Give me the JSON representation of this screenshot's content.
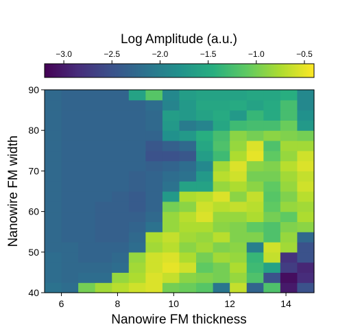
{
  "chart_data": {
    "type": "heatmap",
    "title": "",
    "xlabel": "Nanowire FM thickness",
    "ylabel": "Nanowire FM width",
    "xlim": [
      5.4,
      15.0
    ],
    "ylim": [
      40,
      90
    ],
    "x_ticks": [
      "6",
      "8",
      "10",
      "12",
      "14"
    ],
    "y_ticks": [
      "40",
      "50",
      "60",
      "70",
      "80",
      "90"
    ],
    "colorbar": {
      "label": "Log Amplitude (a.u.)",
      "range": [
        -3.2,
        -0.4
      ],
      "ticks": [
        "−3.0",
        "−2.5",
        "−2.0",
        "−1.5",
        "−1.0",
        "−0.5"
      ],
      "colormap": "viridis",
      "position": "top"
    },
    "x_centers": [
      5.7,
      6.3,
      6.9,
      7.5,
      8.1,
      8.7,
      9.3,
      9.9,
      10.5,
      11.1,
      11.7,
      12.3,
      12.9,
      13.5,
      14.1,
      14.7
    ],
    "y_centers": [
      41.25,
      43.75,
      46.25,
      48.75,
      51.25,
      53.75,
      56.25,
      58.75,
      61.25,
      63.75,
      66.25,
      68.75,
      71.25,
      73.75,
      76.25,
      78.75,
      81.25,
      83.75,
      86.25,
      88.75
    ],
    "values": [
      [
        -2.15,
        -2.2,
        -1.0,
        -0.8,
        -0.7,
        -0.6,
        -0.55,
        -1.0,
        -1.05,
        -1.15,
        -2.1,
        -0.65,
        -2.3,
        -1.2,
        -3.0,
        -2.5
      ],
      [
        -2.2,
        -2.25,
        -2.2,
        -2.2,
        -0.85,
        -0.75,
        -0.55,
        -0.65,
        -0.9,
        -0.95,
        -1.0,
        -0.85,
        -1.2,
        -2.5,
        -3.1,
        -2.85
      ],
      [
        -2.2,
        -2.25,
        -2.25,
        -2.25,
        -2.2,
        -0.8,
        -0.6,
        -0.5,
        -0.6,
        -1.1,
        -1.0,
        -0.75,
        -1.3,
        -1.6,
        -2.7,
        -2.9
      ],
      [
        -2.2,
        -2.25,
        -2.3,
        -2.3,
        -2.25,
        -0.85,
        -0.6,
        -0.55,
        -0.75,
        -1.0,
        -0.8,
        -0.85,
        -1.35,
        -0.65,
        -2.8,
        -2.5
      ],
      [
        -2.25,
        -2.25,
        -2.3,
        -2.3,
        -2.3,
        -2.2,
        -0.8,
        -0.7,
        -0.9,
        -0.8,
        -0.95,
        -0.9,
        -2.0,
        -0.6,
        -0.8,
        -2.5
      ],
      [
        -2.25,
        -2.3,
        -2.3,
        -2.35,
        -2.35,
        -2.25,
        -0.75,
        -0.65,
        -0.8,
        -0.85,
        -0.7,
        -0.95,
        -0.95,
        -1.2,
        -0.85,
        -2.25
      ],
      [
        -2.25,
        -2.3,
        -2.3,
        -2.35,
        -2.35,
        -2.3,
        -2.15,
        -0.85,
        -0.75,
        -0.75,
        -0.9,
        -0.95,
        -1.1,
        -1.2,
        -0.95,
        -0.9
      ],
      [
        -2.25,
        -2.3,
        -2.3,
        -2.35,
        -2.35,
        -2.35,
        -2.25,
        -0.85,
        -0.7,
        -0.55,
        -0.85,
        -0.85,
        -0.75,
        -1.0,
        -1.1,
        -0.75
      ],
      [
        -2.25,
        -2.3,
        -2.3,
        -2.35,
        -2.35,
        -2.4,
        -2.3,
        -1.0,
        -0.9,
        -0.6,
        -0.7,
        -0.65,
        -0.7,
        -1.1,
        -0.85,
        -0.8
      ],
      [
        -2.25,
        -2.3,
        -2.3,
        -2.3,
        -2.35,
        -2.4,
        -2.3,
        -1.7,
        -0.75,
        -0.7,
        -0.55,
        -0.9,
        -0.65,
        -1.15,
        -0.95,
        -0.7
      ],
      [
        -2.25,
        -2.3,
        -2.3,
        -2.3,
        -2.3,
        -2.35,
        -2.3,
        -2.15,
        -1.6,
        -1.6,
        -0.85,
        -0.75,
        -0.9,
        -1.1,
        -0.85,
        -0.6
      ],
      [
        -2.25,
        -2.3,
        -2.3,
        -2.3,
        -2.3,
        -2.35,
        -2.3,
        -2.2,
        -2.15,
        -1.7,
        -0.7,
        -0.6,
        -1.0,
        -1.0,
        -0.8,
        -0.65
      ],
      [
        -2.25,
        -2.3,
        -2.3,
        -2.3,
        -2.3,
        -2.3,
        -2.35,
        -2.3,
        -2.2,
        -1.9,
        -0.8,
        -0.55,
        -0.9,
        -0.95,
        -0.7,
        -0.55
      ],
      [
        -2.25,
        -2.3,
        -2.3,
        -2.3,
        -2.3,
        -2.3,
        -2.5,
        -2.5,
        -2.45,
        -1.65,
        -1.3,
        -0.75,
        -0.5,
        -1.1,
        -0.85,
        -0.6
      ],
      [
        -2.25,
        -2.3,
        -2.3,
        -2.3,
        -2.3,
        -2.3,
        -2.45,
        -2.35,
        -2.25,
        -1.55,
        -1.2,
        -0.85,
        -0.55,
        -1.2,
        -0.8,
        -0.8
      ],
      [
        -2.25,
        -2.3,
        -2.3,
        -2.3,
        -2.3,
        -2.3,
        -2.3,
        -1.8,
        -1.7,
        -1.45,
        -1.25,
        -0.9,
        -1.0,
        -0.9,
        -0.95,
        -1.0
      ],
      [
        -2.25,
        -2.3,
        -2.3,
        -2.3,
        -2.3,
        -2.3,
        -2.25,
        -1.7,
        -2.05,
        -1.95,
        -1.55,
        -1.3,
        -1.25,
        -1.25,
        -1.05,
        -1.7
      ],
      [
        -2.25,
        -2.3,
        -2.3,
        -2.3,
        -2.3,
        -2.3,
        -2.25,
        -1.65,
        -1.7,
        -1.6,
        -1.5,
        -1.7,
        -1.35,
        -1.5,
        -1.25,
        -1.8
      ],
      [
        -2.25,
        -2.3,
        -2.3,
        -2.3,
        -2.3,
        -2.3,
        -2.2,
        -1.95,
        -1.7,
        -1.55,
        -1.55,
        -1.5,
        -1.6,
        -1.5,
        -1.25,
        -1.9
      ],
      [
        -2.25,
        -2.3,
        -2.3,
        -2.3,
        -2.3,
        -1.6,
        -1.15,
        -1.9,
        -1.65,
        -1.6,
        -1.6,
        -1.6,
        -1.55,
        -1.55,
        -1.45,
        -1.9
      ]
    ]
  }
}
